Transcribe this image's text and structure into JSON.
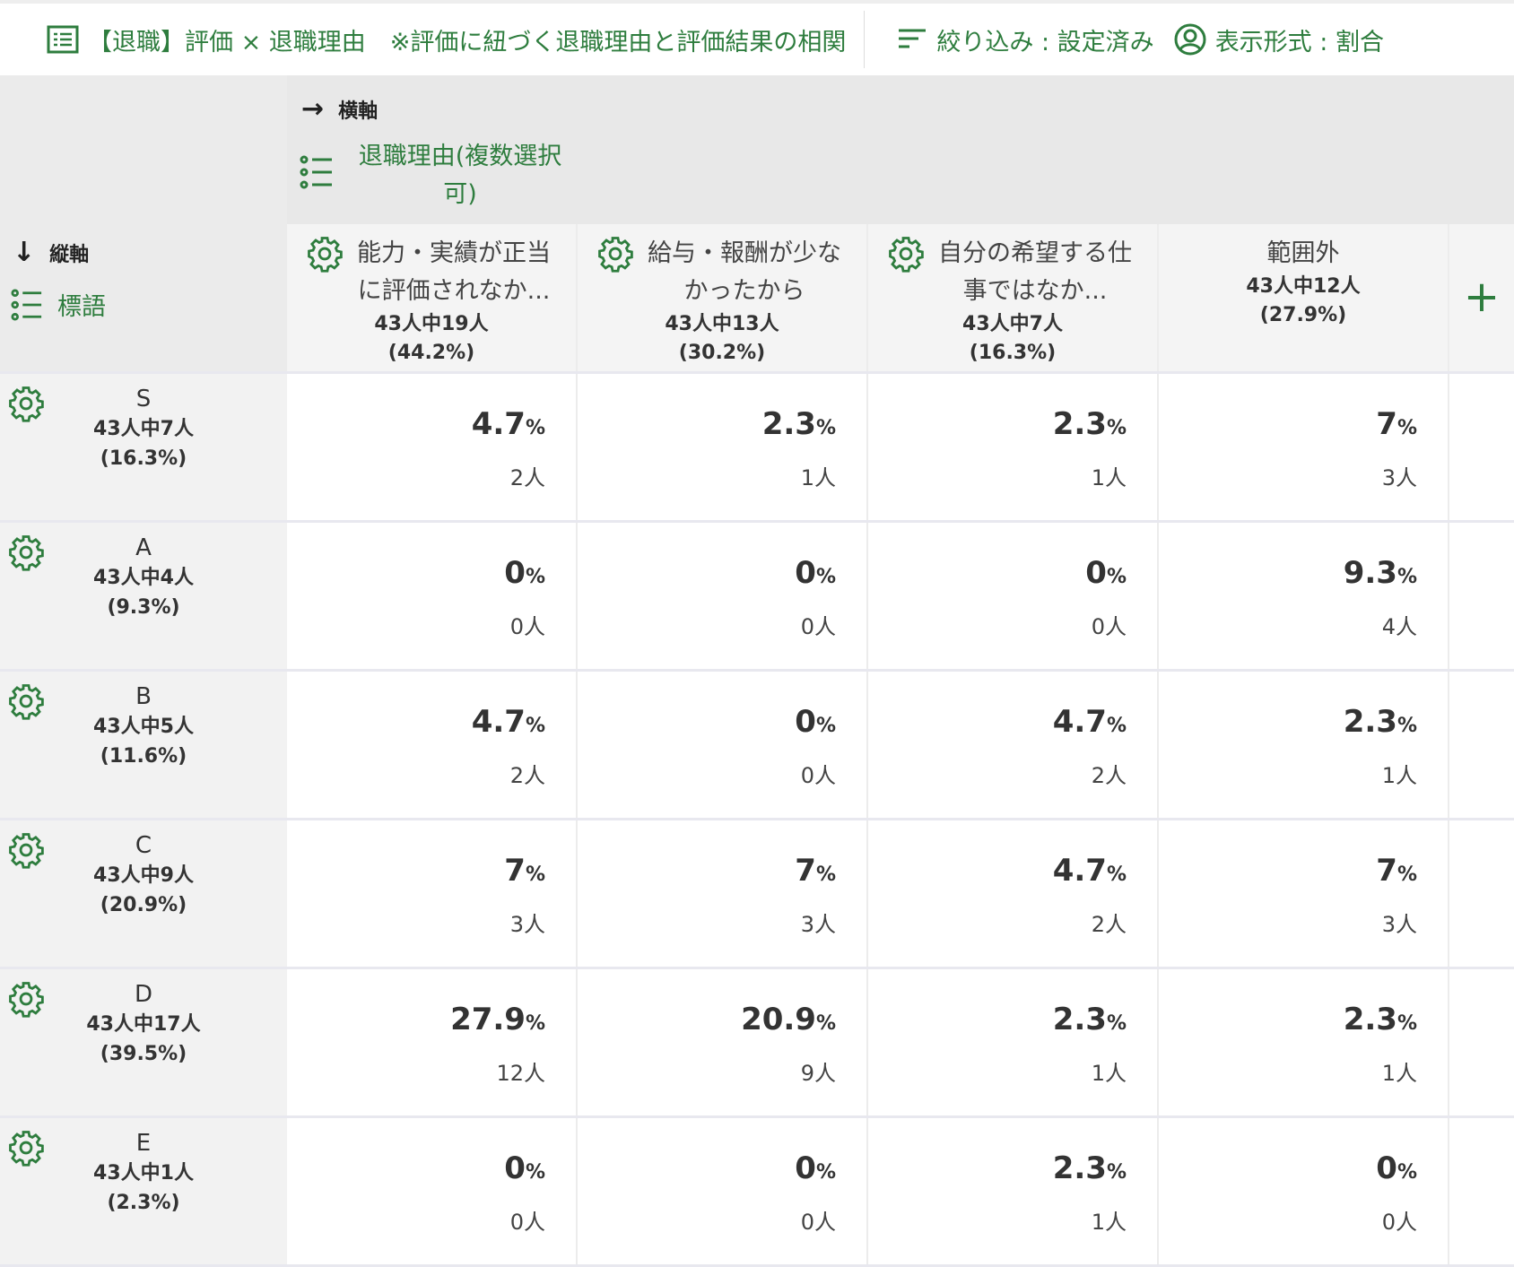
{
  "header": {
    "title": "【退職】評価 × 退職理由　※評価に紐づく退職理由と評価結果の相関",
    "filter": "絞り込み : 設定済み",
    "display": "表示形式 : 割合"
  },
  "axes": {
    "horizontal_label": "横軸",
    "horizontal_field": "退職理由(複数選択可)",
    "vertical_label": "縦軸",
    "vertical_field": "標語"
  },
  "columns": [
    {
      "name": "能力・実績が正当に評価されなか...",
      "count": "43人中19人",
      "pct": "(44.2%)",
      "gear": true
    },
    {
      "name": "給与・報酬が少なかったから",
      "count": "43人中13人",
      "pct": "(30.2%)",
      "gear": true
    },
    {
      "name": "自分の希望する仕事ではなか...",
      "count": "43人中7人",
      "pct": "(16.3%)",
      "gear": true
    },
    {
      "name": "範囲外",
      "count": "43人中12人",
      "pct": "(27.9%)",
      "gear": false
    }
  ],
  "rows": [
    {
      "label": "S",
      "count": "43人中7人",
      "pct": "(16.3%)",
      "cells": [
        [
          "4.7",
          "2人"
        ],
        [
          "2.3",
          "1人"
        ],
        [
          "2.3",
          "1人"
        ],
        [
          "7",
          "3人"
        ]
      ]
    },
    {
      "label": "A",
      "count": "43人中4人",
      "pct": "(9.3%)",
      "cells": [
        [
          "0",
          "0人"
        ],
        [
          "0",
          "0人"
        ],
        [
          "0",
          "0人"
        ],
        [
          "9.3",
          "4人"
        ]
      ]
    },
    {
      "label": "B",
      "count": "43人中5人",
      "pct": "(11.6%)",
      "cells": [
        [
          "4.7",
          "2人"
        ],
        [
          "0",
          "0人"
        ],
        [
          "4.7",
          "2人"
        ],
        [
          "2.3",
          "1人"
        ]
      ]
    },
    {
      "label": "C",
      "count": "43人中9人",
      "pct": "(20.9%)",
      "cells": [
        [
          "7",
          "3人"
        ],
        [
          "7",
          "3人"
        ],
        [
          "4.7",
          "2人"
        ],
        [
          "7",
          "3人"
        ]
      ]
    },
    {
      "label": "D",
      "count": "43人中17人",
      "pct": "(39.5%)",
      "cells": [
        [
          "27.9",
          "12人"
        ],
        [
          "20.9",
          "9人"
        ],
        [
          "2.3",
          "1人"
        ],
        [
          "2.3",
          "1人"
        ]
      ]
    },
    {
      "label": "E",
      "count": "43人中1人",
      "pct": "(2.3%)",
      "cells": [
        [
          "0",
          "0人"
        ],
        [
          "0",
          "0人"
        ],
        [
          "2.3",
          "1人"
        ],
        [
          "0",
          "0人"
        ]
      ]
    }
  ],
  "percent_sign": "%",
  "add_symbol": "+"
}
